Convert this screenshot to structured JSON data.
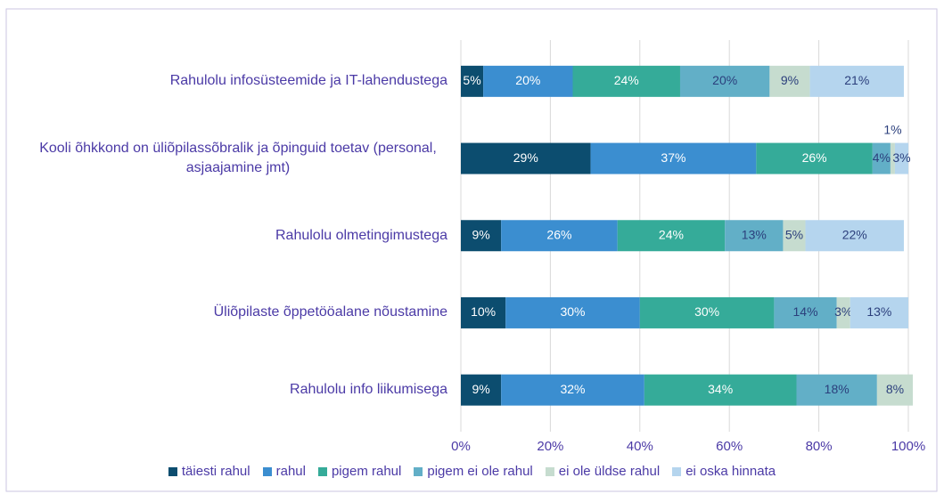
{
  "chart_data": {
    "type": "stacked_barh",
    "categories": [
      "Rahulolu infosüsteemide ja IT-lahendustega",
      "Kooli õhkkond on üliõpilassõbralik ja õpinguid toetav (personal, asjaajamine jmt)",
      "Rahulolu olmetingimustega",
      "Üliõpilaste õppetööalane nõustamine",
      "Rahulolu info liikumisega"
    ],
    "series": [
      {
        "name": "täiesti rahul",
        "color": "#0c4d6f",
        "values": [
          5,
          29,
          9,
          10,
          9
        ],
        "value_labels": [
          "5%",
          "29%",
          "9%",
          "10%",
          "9%"
        ]
      },
      {
        "name": "rahul",
        "color": "#3b8ed0",
        "values": [
          20,
          37,
          26,
          30,
          32
        ],
        "value_labels": [
          "20%",
          "37%",
          "26%",
          "30%",
          "32%"
        ]
      },
      {
        "name": "pigem rahul",
        "color": "#35ab99",
        "values": [
          24,
          26,
          24,
          30,
          34
        ],
        "value_labels": [
          "24%",
          "26%",
          "24%",
          "30%",
          "34%"
        ]
      },
      {
        "name": "pigem ei ole rahul",
        "color": "#62afc7",
        "values": [
          20,
          4,
          13,
          14,
          18
        ],
        "value_labels": [
          "20%",
          "4%",
          "13%",
          "14%",
          "18%"
        ]
      },
      {
        "name": "ei ole üldse rahul",
        "color": "#c6dccf",
        "values": [
          9,
          1,
          5,
          3,
          8
        ],
        "value_labels": [
          "9%",
          "1%",
          "5%",
          "3%",
          "8%"
        ]
      },
      {
        "name": "ei oska hinnata",
        "color": "#b5d5ee",
        "values": [
          21,
          3,
          22,
          13,
          null
        ],
        "value_labels": [
          "21%",
          "3%",
          "22%",
          "13%",
          null
        ]
      }
    ],
    "xlim": [
      0,
      100
    ],
    "xticks": [
      {
        "value": 0,
        "label": "0%"
      },
      {
        "value": 20,
        "label": "20%"
      },
      {
        "value": 40,
        "label": "40%"
      },
      {
        "value": 60,
        "label": "60%"
      },
      {
        "value": 80,
        "label": "80%"
      },
      {
        "value": 100,
        "label": "100%"
      }
    ],
    "grid": true,
    "legend": "bottom"
  }
}
